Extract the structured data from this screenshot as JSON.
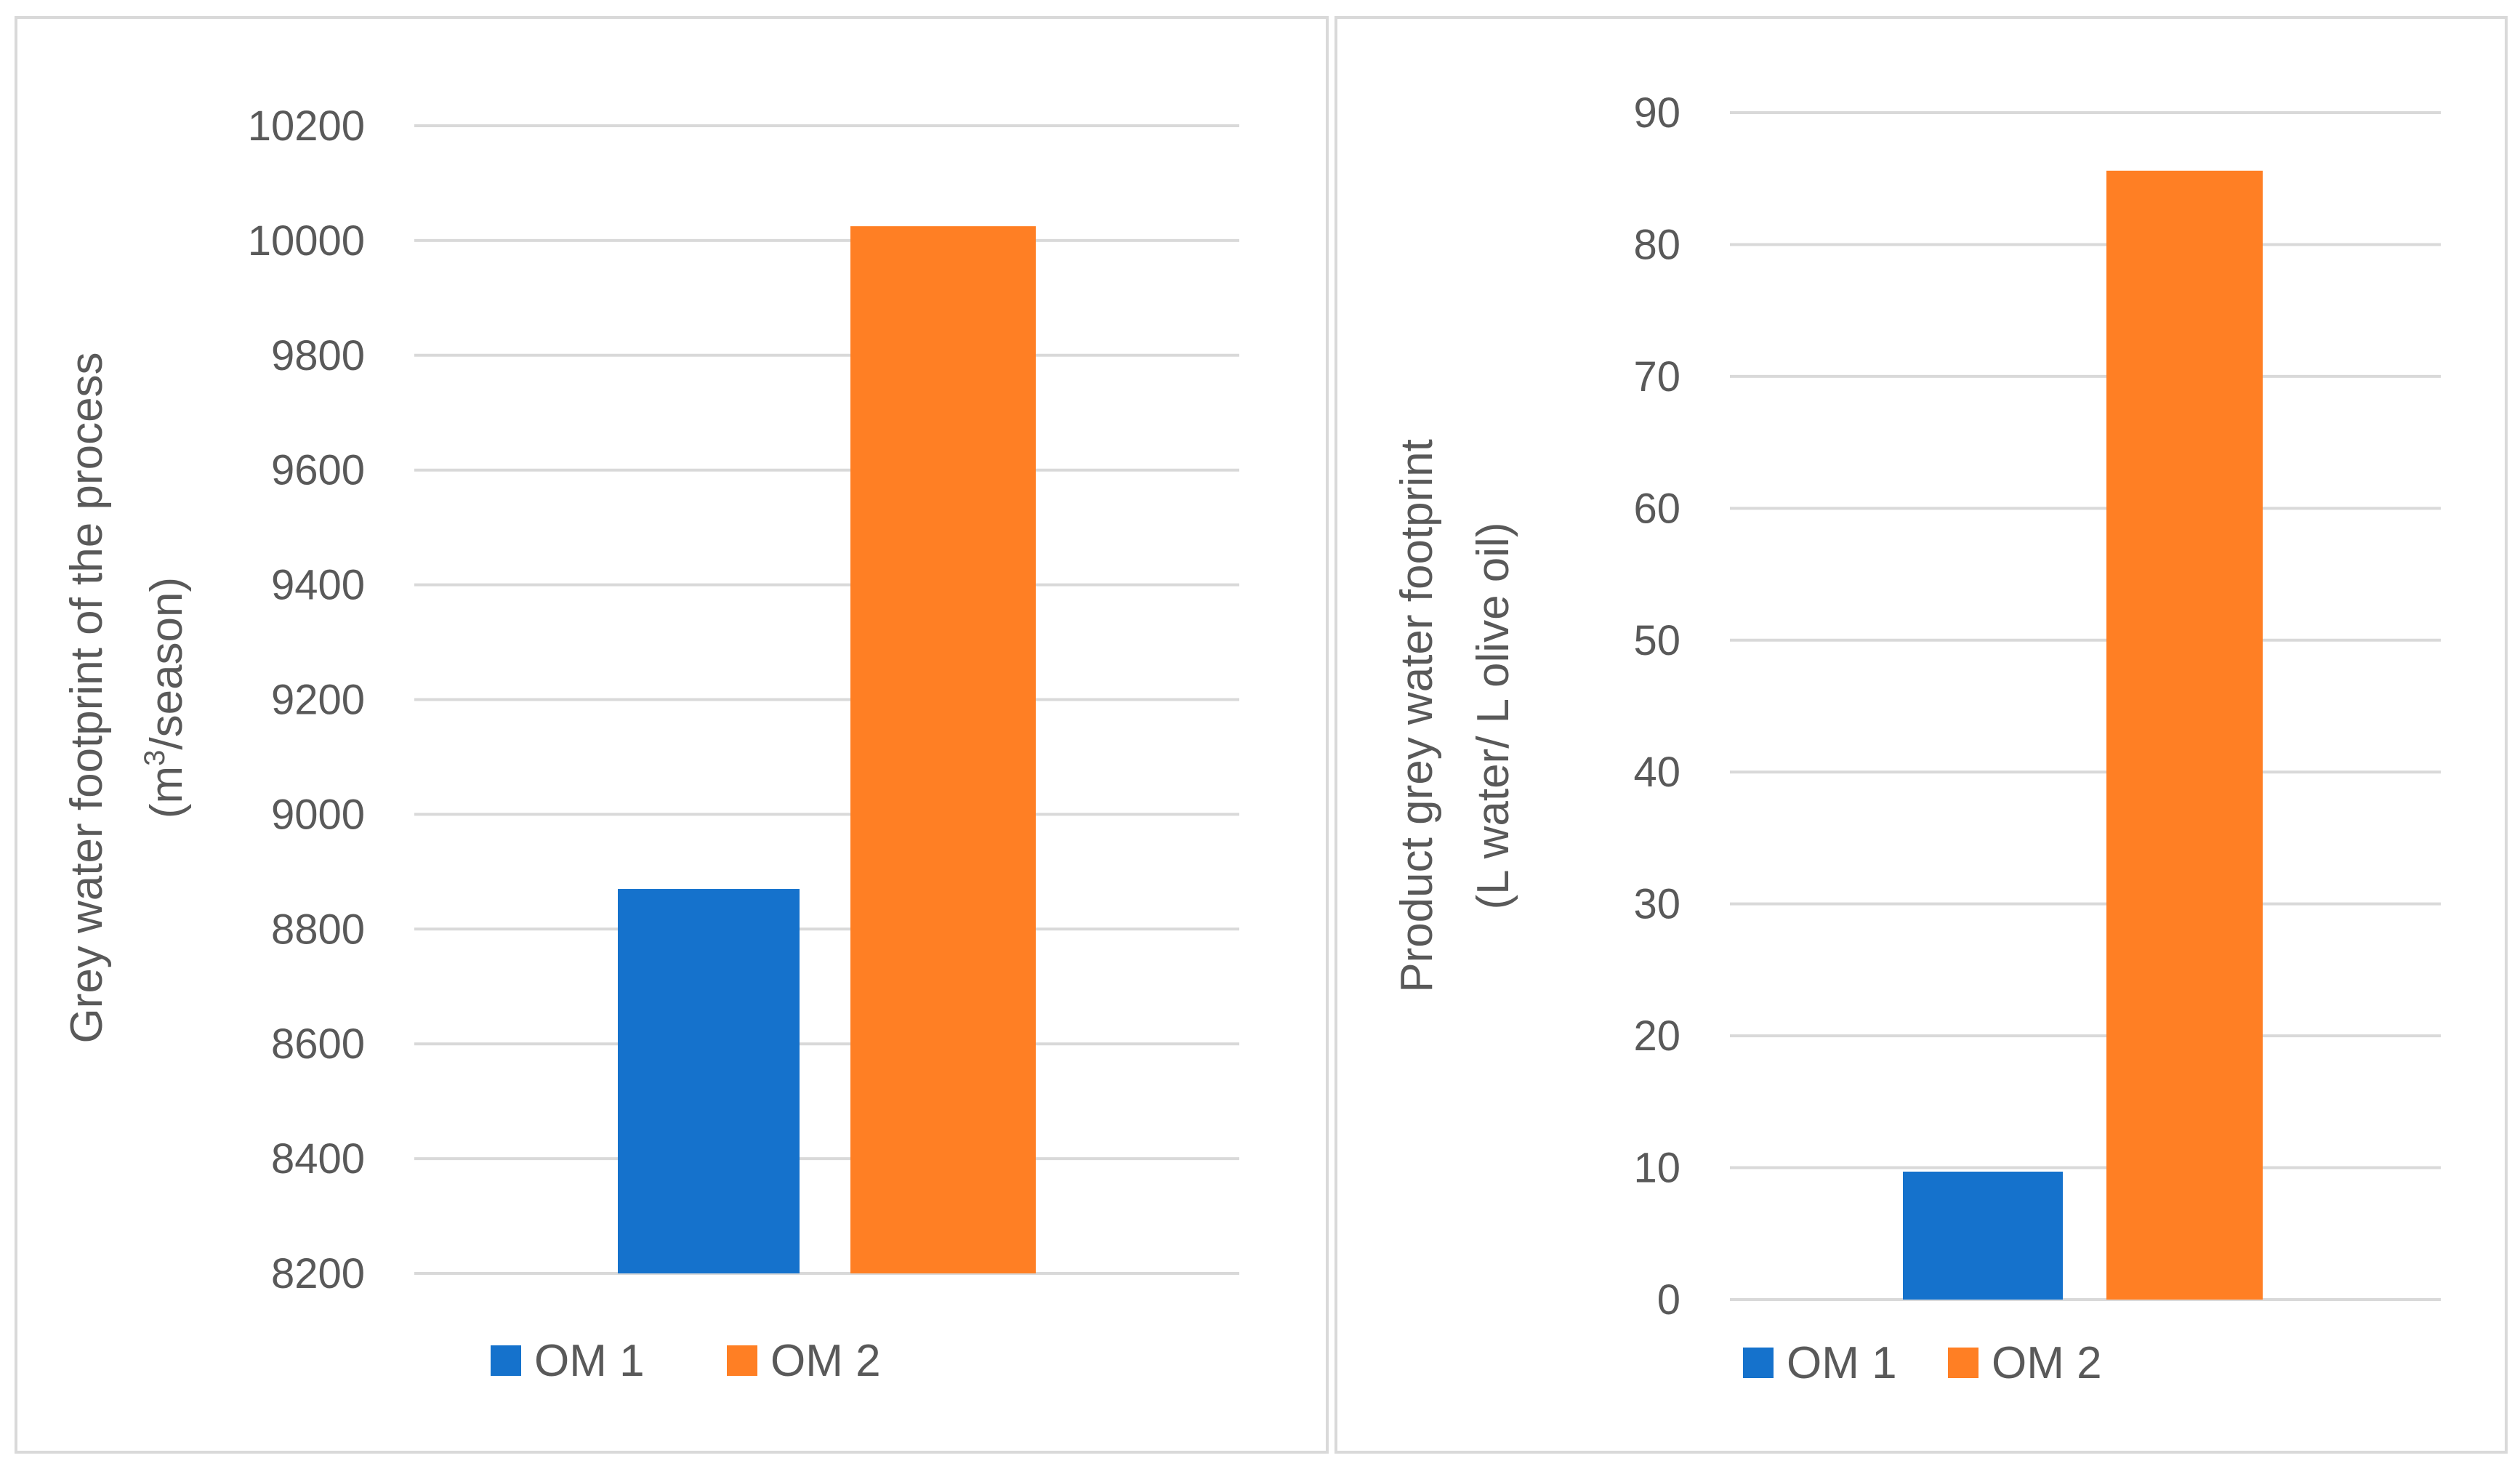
{
  "chart_data": [
    {
      "type": "bar",
      "categories": [
        ""
      ],
      "series": [
        {
          "name": "OM 1",
          "values": [
            8870
          ]
        },
        {
          "name": "OM 2",
          "values": [
            10025
          ]
        }
      ],
      "ylabel_lines": [
        "Grey water footprint of the process",
        "(m3/season)"
      ],
      "ylim": [
        8200,
        10200
      ],
      "yticks": [
        8200,
        8400,
        8600,
        8800,
        9000,
        9200,
        9400,
        9600,
        9800,
        10000,
        10200
      ],
      "grid": true,
      "legend": "bottom-center",
      "colors": [
        "#1572CC",
        "#FF7F24"
      ]
    },
    {
      "type": "bar",
      "categories": [
        ""
      ],
      "series": [
        {
          "name": "OM 1",
          "values": [
            9.7
          ]
        },
        {
          "name": "OM 2",
          "values": [
            85.6
          ]
        }
      ],
      "ylabel_lines": [
        "Product grey water footprint",
        "(L water/ L olive oil)"
      ],
      "ylim": [
        0,
        90
      ],
      "yticks": [
        0,
        10,
        20,
        30,
        40,
        50,
        60,
        70,
        80,
        90
      ],
      "grid": true,
      "legend": "bottom-center",
      "colors": [
        "#1572CC",
        "#FF7F24"
      ]
    }
  ]
}
